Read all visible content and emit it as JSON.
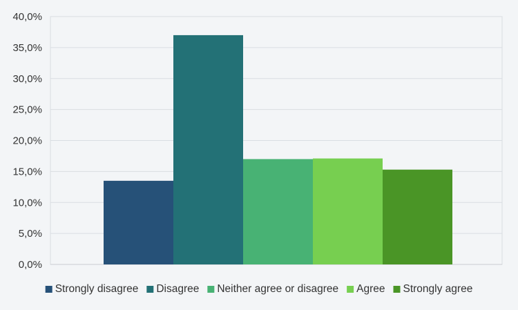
{
  "chart_data": {
    "type": "bar",
    "categories": [
      "Strongly disagree",
      "Disagree",
      "Neither agree or disagree",
      "Agree",
      "Strongly agree"
    ],
    "values": [
      13.5,
      37.0,
      17.0,
      17.1,
      15.3
    ],
    "unit": "%",
    "xlabel": "",
    "ylabel": "",
    "ylim": [
      0,
      40
    ],
    "yticks": [
      "0,0%",
      "5,0%",
      "10,0%",
      "15,0%",
      "20,0%",
      "25,0%",
      "30,0%",
      "35,0%",
      "40,0%"
    ],
    "colors": [
      "#265178",
      "#237176",
      "#48b274",
      "#77cf50",
      "#4a9526"
    ],
    "grid": true,
    "legend": "bottom",
    "legend_entries": [
      "Strongly disagree",
      "Disagree",
      "Neither agree or disagree",
      "Agree",
      "Strongly agree"
    ]
  }
}
